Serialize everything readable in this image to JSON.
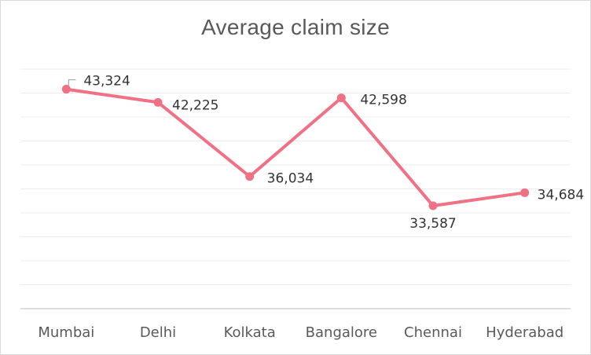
{
  "chart_data": {
    "type": "line",
    "title": "Average claim size",
    "categories": [
      "Mumbai",
      "Delhi",
      "Kolkata",
      "Bangalore",
      "Chennai",
      "Hyderabad"
    ],
    "series": [
      {
        "values": [
          43324,
          42225,
          36034,
          42598,
          33587,
          34684
        ],
        "labels": [
          "43,324",
          "42,225",
          "36,034",
          "42,598",
          "33,587",
          "34,684"
        ],
        "color": "#f07084"
      }
    ],
    "ylim": [
      25000,
      45000
    ],
    "grid": true,
    "legend": "none"
  }
}
